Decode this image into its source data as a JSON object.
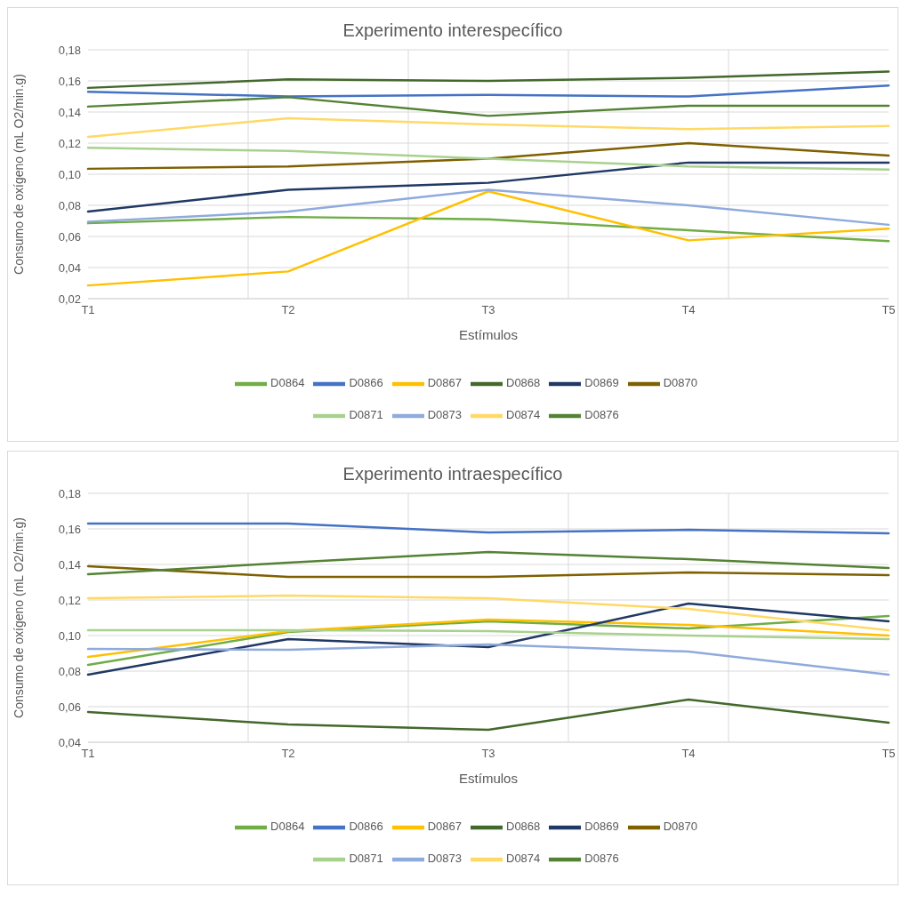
{
  "chart_data": [
    {
      "type": "line",
      "title": "Experimento interespecífico",
      "xlabel": "Estímulos",
      "ylabel": "Consumo de oxígeno (mL O2/min.g)",
      "categories": [
        "T1",
        "T2",
        "T3",
        "T4",
        "T5"
      ],
      "ylim": [
        0.02,
        0.18
      ],
      "yticks": [
        {
          "value": 0.02,
          "label": "0,02"
        },
        {
          "value": 0.04,
          "label": "0,04"
        },
        {
          "value": 0.06,
          "label": "0,06"
        },
        {
          "value": 0.08,
          "label": "0,08"
        },
        {
          "value": 0.1,
          "label": "0,10"
        },
        {
          "value": 0.12,
          "label": "0,12"
        },
        {
          "value": 0.14,
          "label": "0,14"
        },
        {
          "value": 0.16,
          "label": "0,16"
        },
        {
          "value": 0.18,
          "label": "0,18"
        }
      ],
      "grid": true,
      "legend": "bottom",
      "marker": "none",
      "line_style": "solid",
      "series": [
        {
          "name": "D0864",
          "color": "#70ad47",
          "values": [
            0.0685,
            0.0725,
            0.071,
            0.064,
            0.057
          ]
        },
        {
          "name": "D0866",
          "color": "#4472c4",
          "values": [
            0.153,
            0.15,
            0.151,
            0.15,
            0.157
          ]
        },
        {
          "name": "D0867",
          "color": "#ffc000",
          "values": [
            0.0285,
            0.0375,
            0.089,
            0.0575,
            0.065
          ]
        },
        {
          "name": "D0868",
          "color": "#43682b",
          "values": [
            0.1555,
            0.161,
            0.16,
            0.162,
            0.166
          ]
        },
        {
          "name": "D0869",
          "color": "#203864",
          "values": [
            0.076,
            0.09,
            0.0945,
            0.1075,
            0.1075
          ]
        },
        {
          "name": "D0870",
          "color": "#7f6000",
          "values": [
            0.1035,
            0.105,
            0.11,
            0.12,
            0.112
          ]
        },
        {
          "name": "D0871",
          "color": "#a9d18e",
          "values": [
            0.117,
            0.115,
            0.11,
            0.105,
            0.103
          ]
        },
        {
          "name": "D0873",
          "color": "#8faadc",
          "values": [
            0.0695,
            0.076,
            0.09,
            0.08,
            0.0675
          ]
        },
        {
          "name": "D0874",
          "color": "#ffd966",
          "values": [
            0.124,
            0.136,
            0.132,
            0.129,
            0.131
          ]
        },
        {
          "name": "D0876",
          "color": "#548235",
          "values": [
            0.1435,
            0.1495,
            0.1375,
            0.144,
            0.144
          ]
        }
      ]
    },
    {
      "type": "line",
      "title": "Experimento intraespecífico",
      "xlabel": "Estímulos",
      "ylabel": "Consumo de oxígeno (mL O2/min.g)",
      "categories": [
        "T1",
        "T2",
        "T3",
        "T4",
        "T5"
      ],
      "ylim": [
        0.04,
        0.18
      ],
      "yticks": [
        {
          "value": 0.04,
          "label": "0,04"
        },
        {
          "value": 0.06,
          "label": "0,06"
        },
        {
          "value": 0.08,
          "label": "0,08"
        },
        {
          "value": 0.1,
          "label": "0,10"
        },
        {
          "value": 0.12,
          "label": "0,12"
        },
        {
          "value": 0.14,
          "label": "0,14"
        },
        {
          "value": 0.16,
          "label": "0,16"
        },
        {
          "value": 0.18,
          "label": "0,18"
        }
      ],
      "grid": true,
      "legend": "bottom",
      "marker": "none",
      "line_style": "solid",
      "series": [
        {
          "name": "D0864",
          "color": "#70ad47",
          "values": [
            0.0835,
            0.102,
            0.108,
            0.104,
            0.111
          ]
        },
        {
          "name": "D0866",
          "color": "#4472c4",
          "values": [
            0.163,
            0.163,
            0.158,
            0.1595,
            0.1575
          ]
        },
        {
          "name": "D0867",
          "color": "#ffc000",
          "values": [
            0.088,
            0.1025,
            0.109,
            0.106,
            0.1
          ]
        },
        {
          "name": "D0868",
          "color": "#43682b",
          "values": [
            0.057,
            0.05,
            0.047,
            0.064,
            0.051
          ]
        },
        {
          "name": "D0869",
          "color": "#203864",
          "values": [
            0.078,
            0.098,
            0.0935,
            0.118,
            0.108
          ]
        },
        {
          "name": "D0870",
          "color": "#7f6000",
          "values": [
            0.139,
            0.133,
            0.133,
            0.1355,
            0.134
          ]
        },
        {
          "name": "D0871",
          "color": "#a9d18e",
          "values": [
            0.103,
            0.103,
            0.1025,
            0.1,
            0.098
          ]
        },
        {
          "name": "D0873",
          "color": "#8faadc",
          "values": [
            0.0925,
            0.092,
            0.095,
            0.091,
            0.078
          ]
        },
        {
          "name": "D0874",
          "color": "#ffd966",
          "values": [
            0.121,
            0.1225,
            0.121,
            0.115,
            0.103
          ]
        },
        {
          "name": "D0876",
          "color": "#548235",
          "values": [
            0.1345,
            0.141,
            0.147,
            0.143,
            0.138
          ]
        }
      ]
    }
  ]
}
